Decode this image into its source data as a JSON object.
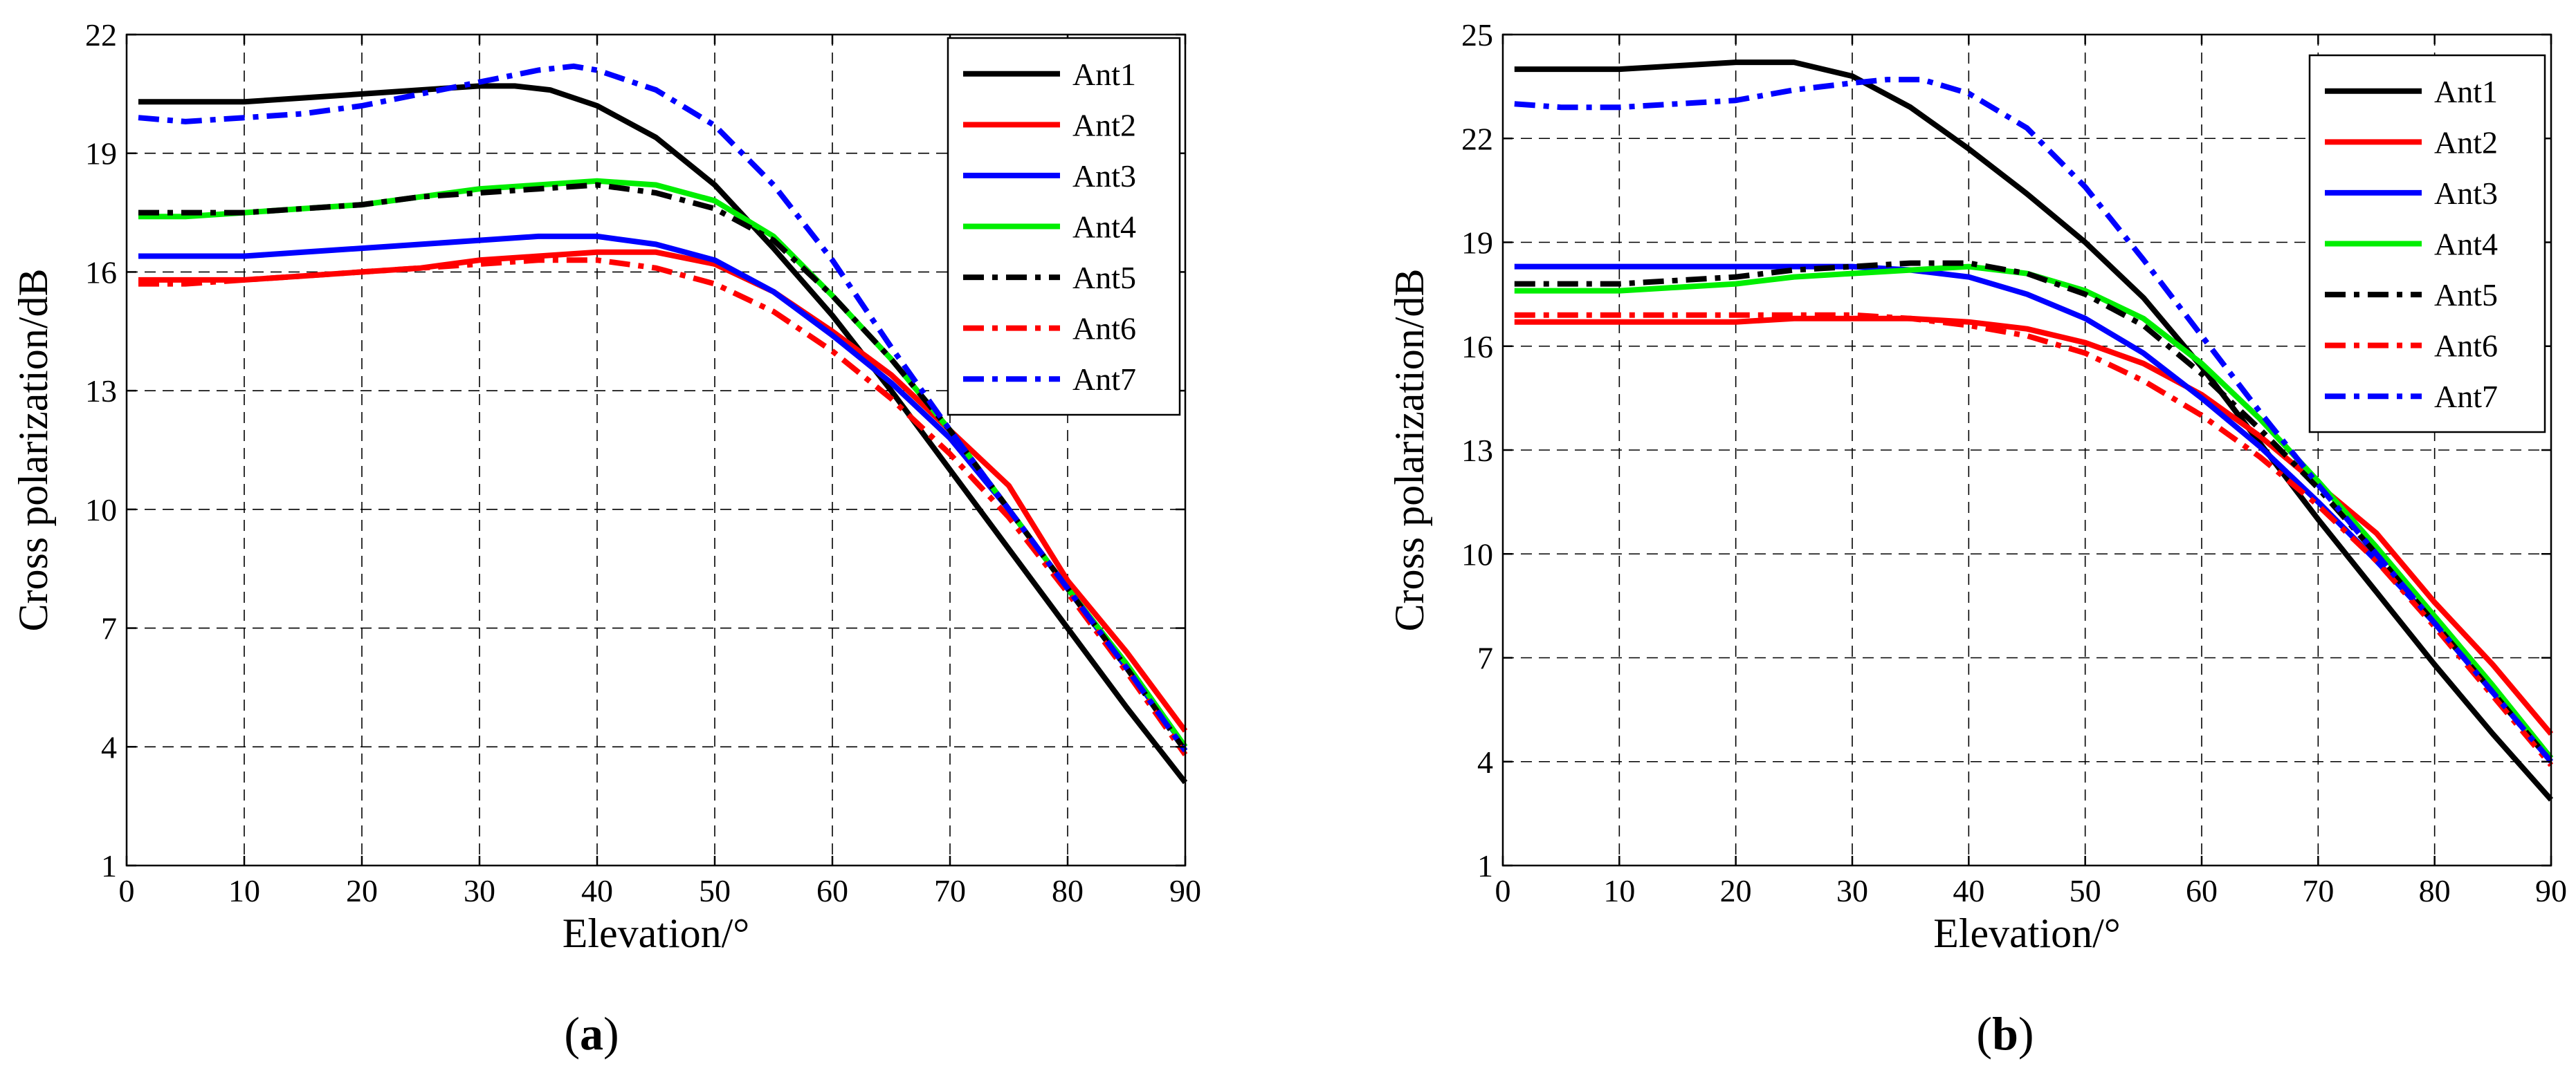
{
  "figure": {
    "panels": [
      {
        "letter": "a",
        "open": "(",
        "close": ")"
      },
      {
        "letter": "b",
        "open": "(",
        "close": ")"
      }
    ]
  },
  "chart_data": [
    {
      "type": "line",
      "panel": "(a)",
      "xlabel": "Elevation/°",
      "ylabel": "Cross polarization/dB",
      "xlim": [
        0,
        90
      ],
      "ylim": [
        1,
        22
      ],
      "xticks": [
        0,
        10,
        20,
        30,
        40,
        50,
        60,
        70,
        80,
        90
      ],
      "yticks": [
        1,
        4,
        7,
        10,
        13,
        16,
        19,
        22
      ],
      "grid": true,
      "legend_position": "top-right",
      "series": [
        {
          "name": "Ant1",
          "color": "#000000",
          "style": "solid",
          "x": [
            1,
            5,
            10,
            15,
            20,
            25,
            30,
            33,
            36,
            40,
            45,
            50,
            55,
            60,
            65,
            70,
            75,
            80,
            85,
            90
          ],
          "y": [
            20.3,
            20.3,
            20.3,
            20.4,
            20.5,
            20.6,
            20.7,
            20.7,
            20.6,
            20.2,
            19.4,
            18.2,
            16.6,
            14.9,
            13.0,
            11.0,
            9.0,
            7.0,
            5.0,
            3.1
          ]
        },
        {
          "name": "Ant2",
          "color": "#ff0000",
          "style": "solid",
          "x": [
            1,
            5,
            10,
            15,
            20,
            25,
            30,
            35,
            40,
            45,
            50,
            55,
            60,
            65,
            70,
            75,
            80,
            85,
            90
          ],
          "y": [
            15.8,
            15.8,
            15.8,
            15.9,
            16.0,
            16.1,
            16.3,
            16.4,
            16.5,
            16.5,
            16.2,
            15.5,
            14.5,
            13.4,
            12.0,
            10.6,
            8.2,
            6.4,
            4.4
          ]
        },
        {
          "name": "Ant3",
          "color": "#0000ff",
          "style": "solid",
          "x": [
            1,
            5,
            10,
            15,
            20,
            25,
            30,
            35,
            40,
            45,
            50,
            55,
            60,
            65,
            70,
            75,
            80,
            85,
            90
          ],
          "y": [
            16.4,
            16.4,
            16.4,
            16.5,
            16.6,
            16.7,
            16.8,
            16.9,
            16.9,
            16.7,
            16.3,
            15.5,
            14.4,
            13.2,
            11.8,
            10.0,
            8.0,
            6.0,
            4.0
          ]
        },
        {
          "name": "Ant4",
          "color": "#00ee00",
          "style": "solid",
          "x": [
            1,
            5,
            10,
            15,
            20,
            25,
            30,
            35,
            40,
            45,
            50,
            55,
            60,
            65,
            70,
            75,
            80,
            85,
            90
          ],
          "y": [
            17.4,
            17.4,
            17.5,
            17.6,
            17.7,
            17.9,
            18.1,
            18.2,
            18.3,
            18.2,
            17.8,
            16.9,
            15.4,
            13.8,
            12.0,
            10.0,
            8.0,
            6.1,
            4.0
          ]
        },
        {
          "name": "Ant5",
          "color": "#000000",
          "style": "dashdot",
          "x": [
            1,
            5,
            10,
            15,
            20,
            25,
            30,
            35,
            40,
            45,
            50,
            55,
            60,
            65,
            70,
            75,
            80,
            85,
            90
          ],
          "y": [
            17.5,
            17.5,
            17.5,
            17.6,
            17.7,
            17.9,
            18.0,
            18.1,
            18.2,
            18.0,
            17.6,
            16.8,
            15.4,
            13.8,
            12.0,
            10.0,
            8.0,
            6.0,
            3.9
          ]
        },
        {
          "name": "Ant6",
          "color": "#ff0000",
          "style": "dashdot",
          "x": [
            1,
            5,
            10,
            15,
            20,
            25,
            30,
            35,
            40,
            45,
            50,
            55,
            60,
            65,
            70,
            75,
            80,
            85,
            90
          ],
          "y": [
            15.7,
            15.7,
            15.8,
            15.9,
            16.0,
            16.1,
            16.2,
            16.3,
            16.3,
            16.1,
            15.7,
            15.0,
            14.0,
            12.8,
            11.4,
            9.8,
            7.9,
            5.9,
            3.8
          ]
        },
        {
          "name": "Ant7",
          "color": "#0000ff",
          "style": "dashdot",
          "x": [
            1,
            5,
            10,
            15,
            20,
            25,
            30,
            35,
            38,
            40,
            45,
            50,
            55,
            60,
            65,
            70,
            75,
            80,
            85,
            90
          ],
          "y": [
            19.9,
            19.8,
            19.9,
            20.0,
            20.2,
            20.5,
            20.8,
            21.1,
            21.2,
            21.1,
            20.6,
            19.7,
            18.2,
            16.3,
            14.1,
            12.0,
            10.0,
            8.0,
            6.0,
            3.9
          ]
        }
      ]
    },
    {
      "type": "line",
      "panel": "(b)",
      "xlabel": "Elevation/°",
      "ylabel": "Cross polarization/dB",
      "xlim": [
        0,
        90
      ],
      "ylim": [
        1,
        25
      ],
      "xticks": [
        0,
        10,
        20,
        30,
        40,
        50,
        60,
        70,
        80,
        90
      ],
      "yticks": [
        1,
        4,
        7,
        10,
        13,
        16,
        19,
        22,
        25
      ],
      "grid": true,
      "legend_position": "top-right",
      "series": [
        {
          "name": "Ant1",
          "color": "#000000",
          "style": "solid",
          "x": [
            1,
            5,
            10,
            15,
            20,
            25,
            30,
            35,
            40,
            45,
            50,
            55,
            60,
            65,
            70,
            75,
            80,
            85,
            90
          ],
          "y": [
            24.0,
            24.0,
            24.0,
            24.1,
            24.2,
            24.2,
            23.8,
            22.9,
            21.7,
            20.4,
            19.0,
            17.4,
            15.4,
            13.2,
            11.0,
            8.9,
            6.8,
            4.8,
            2.9
          ]
        },
        {
          "name": "Ant2",
          "color": "#ff0000",
          "style": "solid",
          "x": [
            1,
            5,
            10,
            15,
            20,
            25,
            30,
            35,
            40,
            45,
            50,
            55,
            60,
            65,
            70,
            75,
            80,
            85,
            90
          ],
          "y": [
            16.7,
            16.7,
            16.7,
            16.7,
            16.7,
            16.8,
            16.8,
            16.8,
            16.7,
            16.5,
            16.1,
            15.5,
            14.6,
            13.4,
            12.0,
            10.6,
            8.6,
            6.8,
            4.8
          ]
        },
        {
          "name": "Ant3",
          "color": "#0000ff",
          "style": "solid",
          "x": [
            1,
            5,
            10,
            15,
            20,
            25,
            30,
            35,
            40,
            45,
            50,
            55,
            60,
            65,
            70,
            75,
            80,
            85,
            90
          ],
          "y": [
            18.3,
            18.3,
            18.3,
            18.3,
            18.3,
            18.3,
            18.3,
            18.2,
            18.0,
            17.5,
            16.8,
            15.8,
            14.5,
            13.1,
            11.5,
            9.8,
            8.0,
            6.0,
            4.1
          ]
        },
        {
          "name": "Ant4",
          "color": "#00ee00",
          "style": "solid",
          "x": [
            1,
            5,
            10,
            15,
            20,
            25,
            30,
            35,
            40,
            45,
            50,
            55,
            60,
            65,
            70,
            75,
            80,
            85,
            90
          ],
          "y": [
            17.6,
            17.6,
            17.6,
            17.7,
            17.8,
            18.0,
            18.1,
            18.2,
            18.3,
            18.1,
            17.6,
            16.8,
            15.5,
            13.9,
            12.1,
            10.2,
            8.2,
            6.2,
            4.1
          ]
        },
        {
          "name": "Ant5",
          "color": "#000000",
          "style": "dashdot",
          "x": [
            1,
            5,
            10,
            15,
            20,
            25,
            30,
            35,
            40,
            45,
            50,
            55,
            60,
            65,
            70,
            75,
            80,
            85,
            90
          ],
          "y": [
            17.8,
            17.8,
            17.8,
            17.9,
            18.0,
            18.2,
            18.3,
            18.4,
            18.4,
            18.1,
            17.5,
            16.6,
            15.2,
            13.6,
            11.9,
            10.0,
            8.0,
            6.0,
            4.0
          ]
        },
        {
          "name": "Ant6",
          "color": "#ff0000",
          "style": "dashdot",
          "x": [
            1,
            5,
            10,
            15,
            20,
            25,
            30,
            35,
            40,
            45,
            50,
            55,
            60,
            65,
            70,
            75,
            80,
            85,
            90
          ],
          "y": [
            16.9,
            16.9,
            16.9,
            16.9,
            16.9,
            16.9,
            16.9,
            16.8,
            16.6,
            16.3,
            15.8,
            15.0,
            14.0,
            12.8,
            11.4,
            9.8,
            7.9,
            5.9,
            3.9
          ]
        },
        {
          "name": "Ant7",
          "color": "#0000ff",
          "style": "dashdot",
          "x": [
            1,
            5,
            10,
            15,
            20,
            25,
            30,
            33,
            36,
            40,
            45,
            50,
            55,
            60,
            65,
            70,
            75,
            80,
            85,
            90
          ],
          "y": [
            23.0,
            22.9,
            22.9,
            23.0,
            23.1,
            23.4,
            23.6,
            23.7,
            23.7,
            23.3,
            22.3,
            20.6,
            18.5,
            16.3,
            14.1,
            12.0,
            10.0,
            8.0,
            6.0,
            4.0
          ]
        }
      ]
    }
  ]
}
